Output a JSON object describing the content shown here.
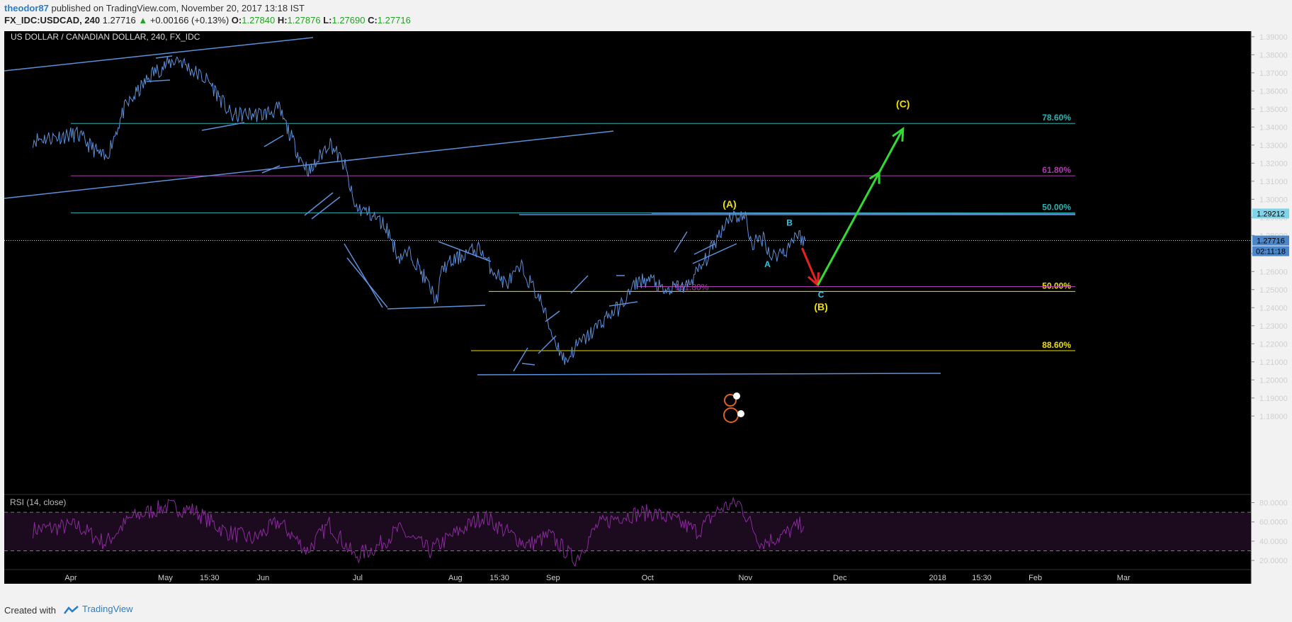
{
  "header": {
    "username": "theodor87",
    "published": "published on TradingView.com, November 20, 2017 13:18 IST",
    "symbol": "FX_IDC:USDCAD, 240",
    "last": "1.27716",
    "change": "+0.00166 (+0.13%)",
    "o_label": "O:",
    "o_val": "1.27840",
    "h_label": "H:",
    "h_val": "1.27876",
    "l_label": "L:",
    "l_val": "1.27690",
    "c_label": "C:",
    "c_val": "1.27716"
  },
  "footer": {
    "created_with": "Created with",
    "brand": "TradingView"
  },
  "colors": {
    "bg": "#000000",
    "price_line": "#5b8fd9",
    "fib_teal": "#2ab3b3",
    "fib_magenta": "#b03ab0",
    "fib_yellow": "#f0e000",
    "rsi": "#8b2a9e",
    "arrow_green": "#2fdc2f",
    "arrow_red": "#e82020"
  },
  "chart_data": {
    "type": "line",
    "title": "US DOLLAR / CANADIAN DOLLAR, 240, FX_IDC",
    "price_axis": {
      "ylim": [
        1.175,
        1.3915
      ],
      "ticks": [
        "1.39000",
        "1.38000",
        "1.37000",
        "1.36000",
        "1.35000",
        "1.34000",
        "1.33000",
        "1.32000",
        "1.31000",
        "1.30000",
        "1.29000",
        "1.28000",
        "1.27000",
        "1.26000",
        "1.25000",
        "1.24000",
        "1.23000",
        "1.22000",
        "1.21000",
        "1.20000",
        "1.19000",
        "1.18000"
      ]
    },
    "time_axis": {
      "labels": [
        "Apr",
        "May",
        "15:30",
        "Jun",
        "Jul",
        "Aug",
        "15:30",
        "Sep",
        "Oct",
        "Nov",
        "Dec",
        "2018",
        "15:30",
        "Feb",
        "Mar"
      ]
    },
    "last_price": {
      "label": "1.27716",
      "countdown": "02:11:18",
      "value": 1.27716
    },
    "marker_price": {
      "label": "1.29212",
      "value": 1.29212
    },
    "series": [
      {
        "x": [
          "2017-03-20",
          "2017-04-03",
          "2017-04-12",
          "2017-04-18",
          "2017-04-27",
          "2017-05-05",
          "2017-05-09",
          "2017-05-15",
          "2017-05-22",
          "2017-05-26",
          "2017-06-01",
          "2017-06-06",
          "2017-06-13",
          "2017-06-16",
          "2017-06-22",
          "2017-06-27",
          "2017-06-30",
          "2017-07-05",
          "2017-07-10",
          "2017-07-14",
          "2017-07-18",
          "2017-07-26",
          "2017-07-28",
          "2017-08-04",
          "2017-08-09",
          "2017-08-11",
          "2017-08-17",
          "2017-08-22",
          "2017-08-28",
          "2017-09-01",
          "2017-09-05",
          "2017-09-08",
          "2017-09-12",
          "2017-09-18",
          "2017-09-22",
          "2017-09-28",
          "2017-10-03",
          "2017-10-06",
          "2017-10-11",
          "2017-10-13",
          "2017-10-19",
          "2017-10-25",
          "2017-10-27",
          "2017-11-01",
          "2017-11-03",
          "2017-11-07",
          "2017-11-09",
          "2017-11-14",
          "2017-11-17",
          "2017-11-20"
        ],
        "values": [
          1.333,
          1.336,
          1.322,
          1.35,
          1.37,
          1.378,
          1.372,
          1.365,
          1.346,
          1.347,
          1.347,
          1.35,
          1.322,
          1.315,
          1.332,
          1.318,
          1.296,
          1.292,
          1.285,
          1.268,
          1.27,
          1.244,
          1.262,
          1.27,
          1.273,
          1.265,
          1.253,
          1.262,
          1.244,
          1.224,
          1.21,
          1.218,
          1.224,
          1.235,
          1.24,
          1.255,
          1.255,
          1.248,
          1.252,
          1.251,
          1.265,
          1.285,
          1.291,
          1.29,
          1.275,
          1.279,
          1.268,
          1.272,
          1.281,
          1.277
        ]
      }
    ],
    "fib_levels": [
      {
        "label": "78.60%",
        "value": 1.342,
        "color": "#2ab3b3"
      },
      {
        "label": "61.80%",
        "value": 1.313,
        "color": "#b03ab0"
      },
      {
        "label": "50.00%",
        "value": 1.2925,
        "color": "#2ab3b3"
      },
      {
        "label": "50.00%",
        "value": 1.249,
        "color": "#f0e000"
      },
      {
        "label": "161.80%",
        "value": 1.2517,
        "color": "#b03ab0"
      },
      {
        "label": "88.60%",
        "value": 1.2162,
        "color": "#f0e000"
      }
    ],
    "wave_labels": [
      {
        "text": "(A)",
        "date": "2017-10-27",
        "value": 1.2955,
        "color": "#f0e000"
      },
      {
        "text": "B",
        "date": "2017-11-15",
        "value": 1.2855,
        "color": "#36c6e0"
      },
      {
        "text": "A",
        "date": "2017-11-08",
        "value": 1.2625,
        "color": "#36c6e0"
      },
      {
        "text": "C",
        "date": "2017-11-25",
        "value": 1.2455,
        "color": "#36c6e0"
      },
      {
        "text": "(B)",
        "date": "2017-11-25",
        "value": 1.2385,
        "color": "#f0e000"
      },
      {
        "text": "(C)",
        "date": "2017-12-21",
        "value": 1.351,
        "color": "#f0e000"
      }
    ],
    "projection": {
      "red": {
        "from": [
          "2017-11-19",
          1.273
        ],
        "to": [
          "2017-11-24",
          1.2525
        ]
      },
      "green": {
        "from": [
          "2017-11-24",
          1.2525
        ],
        "to": [
          "2017-12-21",
          1.339
        ]
      }
    },
    "rsi": {
      "label": "RSI (14, close)",
      "ylim": [
        12,
        87
      ],
      "ticks": [
        "80.0000",
        "60.0000",
        "40.0000",
        "20.0000"
      ],
      "bands": [
        70,
        30
      ],
      "x": [
        "2017-03-20",
        "2017-04-03",
        "2017-04-12",
        "2017-04-20",
        "2017-05-01",
        "2017-05-10",
        "2017-05-20",
        "2017-05-29",
        "2017-06-06",
        "2017-06-15",
        "2017-06-22",
        "2017-06-30",
        "2017-07-07",
        "2017-07-14",
        "2017-07-24",
        "2017-08-01",
        "2017-08-10",
        "2017-08-17",
        "2017-08-24",
        "2017-08-31",
        "2017-09-08",
        "2017-09-15",
        "2017-09-22",
        "2017-10-02",
        "2017-10-09",
        "2017-10-17",
        "2017-10-24",
        "2017-10-30",
        "2017-11-06",
        "2017-11-13",
        "2017-11-20"
      ],
      "values": [
        52,
        56,
        38,
        64,
        76,
        72,
        50,
        42,
        60,
        30,
        58,
        24,
        34,
        52,
        30,
        48,
        66,
        50,
        36,
        46,
        20,
        56,
        66,
        70,
        62,
        50,
        74,
        80,
        38,
        46,
        60
      ]
    }
  }
}
